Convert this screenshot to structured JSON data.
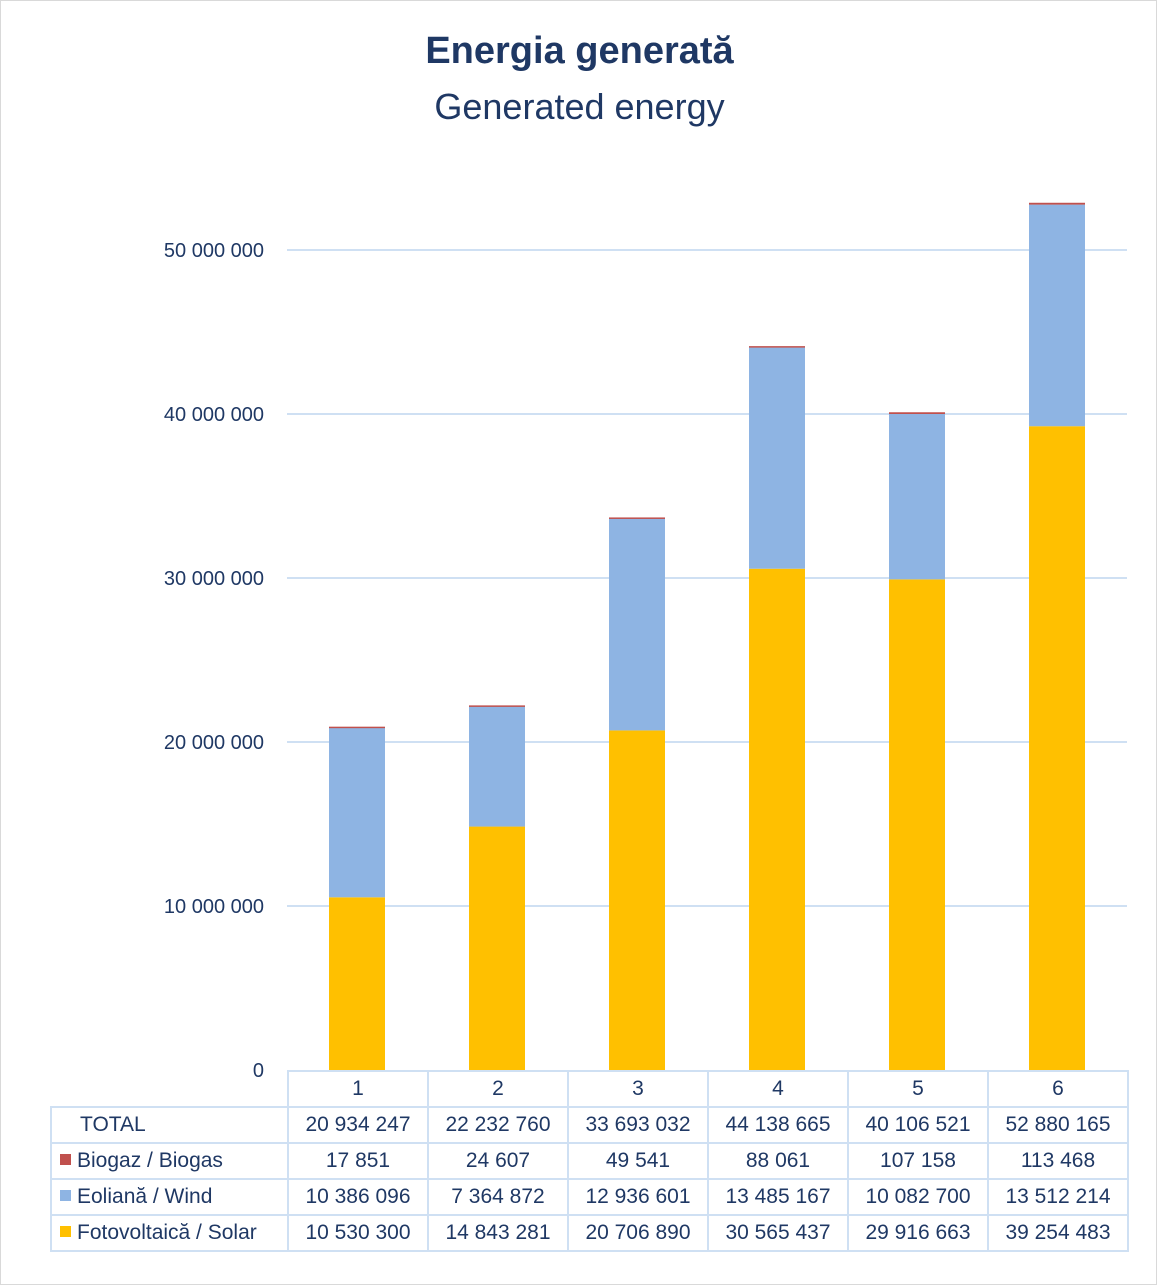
{
  "chart_data": {
    "type": "bar",
    "stacked": true,
    "title": "Energia generată",
    "subtitle": "Generated energy",
    "categories": [
      "1",
      "2",
      "3",
      "4",
      "5",
      "6"
    ],
    "ylim": [
      0,
      55000000
    ],
    "yticks": [
      0,
      10000000,
      20000000,
      30000000,
      40000000,
      50000000
    ],
    "ytick_labels": [
      "0",
      "10 000 000",
      "20 000 000",
      "30 000 000",
      "40 000 000",
      "50 000 000"
    ],
    "grid": true,
    "legend": "data-table",
    "series": [
      {
        "name": "Fotovoltaică / Solar",
        "color": "#ffc000",
        "values": [
          10530300,
          14843281,
          20706890,
          30565437,
          29916663,
          39254483
        ],
        "labels": [
          "10 530 300",
          "14 843 281",
          "20 706 890",
          "30 565 437",
          "29 916 663",
          "39 254 483"
        ]
      },
      {
        "name": "Eoliană / Wind",
        "color": "#8eb4e3",
        "values": [
          10386096,
          7364872,
          12936601,
          13485167,
          10082700,
          13512214
        ],
        "labels": [
          "10 386 096",
          "7 364 872",
          "12 936 601",
          "13 485 167",
          "10 082 700",
          "13 512 214"
        ]
      },
      {
        "name": "Biogaz / Biogas",
        "color": "#c0504d",
        "values": [
          17851,
          24607,
          49541,
          88061,
          107158,
          113468
        ],
        "labels": [
          "17 851",
          "24 607",
          "49 541",
          "88 061",
          "107 158",
          "113 468"
        ]
      }
    ],
    "total": {
      "name": "TOTAL",
      "values": [
        20934247,
        22232760,
        33693032,
        44138665,
        40106521,
        52880165
      ],
      "labels": [
        "20 934 247",
        "22 232 760",
        "33 693 032",
        "44 138 665",
        "40 106 521",
        "52 880 165"
      ]
    }
  }
}
